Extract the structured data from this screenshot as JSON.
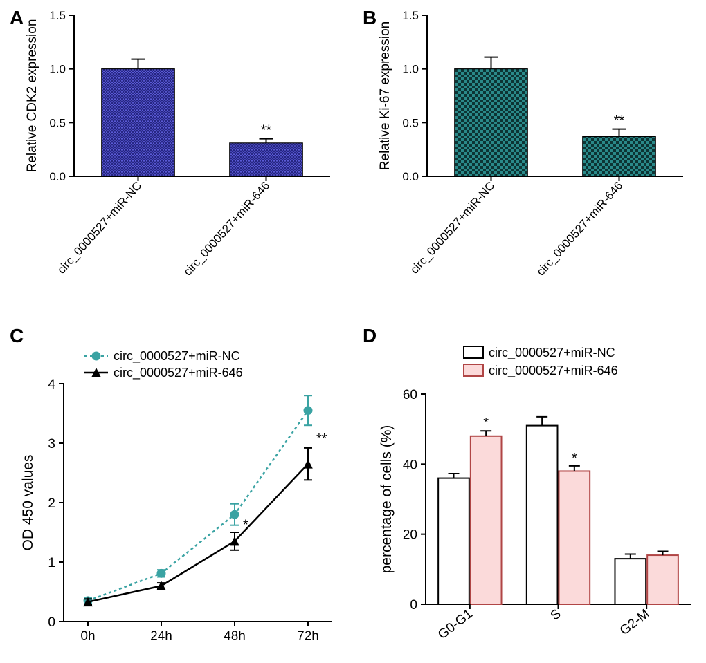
{
  "panelA": {
    "label": "A",
    "type": "bar",
    "ylabel": "Relative CDK2 expression",
    "ylim": [
      0,
      1.5
    ],
    "ytick_step": 0.5,
    "categories": [
      "circ_0000527+miR-NC",
      "circ_0000527+miR-646"
    ],
    "values": [
      1.0,
      0.31
    ],
    "errors": [
      0.09,
      0.04
    ],
    "bar_color": "#5b5bd6",
    "pattern": "zigzag",
    "pattern_stroke": "#1a1a70",
    "significance": [
      "",
      "**"
    ],
    "sig_fontsize": 20,
    "axis_color": "#000000",
    "label_fontsize": 19,
    "tick_fontsize": 17,
    "bar_width": 0.57,
    "background": "#ffffff"
  },
  "panelB": {
    "label": "B",
    "type": "bar",
    "ylabel": "Relative Ki-67 expression",
    "ylim": [
      0,
      1.5
    ],
    "ytick_step": 0.5,
    "categories": [
      "circ_0000527+miR-NC",
      "circ_0000527+miR-646"
    ],
    "values": [
      1.0,
      0.37
    ],
    "errors": [
      0.11,
      0.07
    ],
    "bar_color": "#2a8a8a",
    "pattern": "checker",
    "pattern_stroke": "#0d3535",
    "significance": [
      "",
      "**"
    ],
    "sig_fontsize": 20,
    "axis_color": "#000000",
    "label_fontsize": 19,
    "tick_fontsize": 17,
    "bar_width": 0.57,
    "background": "#ffffff"
  },
  "panelC": {
    "label": "C",
    "type": "line",
    "ylabel": "OD 450 values",
    "ylim": [
      0,
      4
    ],
    "ytick_step": 1,
    "xcategories": [
      "0h",
      "24h",
      "48h",
      "72h"
    ],
    "series": [
      {
        "name": "circ_0000527+miR-NC",
        "values": [
          0.35,
          0.81,
          1.8,
          3.55
        ],
        "errors": [
          0.05,
          0.06,
          0.18,
          0.25
        ],
        "color": "#3aa3a3",
        "marker": "circle",
        "dash": "4,4",
        "line_width": 2.5
      },
      {
        "name": "circ_0000527+miR-646",
        "values": [
          0.33,
          0.6,
          1.35,
          2.65
        ],
        "errors": [
          0.05,
          0.05,
          0.15,
          0.27
        ],
        "color": "#000000",
        "marker": "triangle",
        "dash": "none",
        "line_width": 2.5
      }
    ],
    "significance": [
      {
        "x_index": 2,
        "y": 1.55,
        "text": "*"
      },
      {
        "x_index": 3,
        "y": 3.0,
        "text": "**"
      }
    ],
    "axis_color": "#000000",
    "label_fontsize": 21,
    "tick_fontsize": 19,
    "legend_fontsize": 18,
    "background": "#ffffff"
  },
  "panelD": {
    "label": "D",
    "type": "grouped-bar",
    "ylabel": "percentage of cells (%)",
    "ylim": [
      0,
      60
    ],
    "ytick_step": 20,
    "categories": [
      "G0-G1",
      "S",
      "G2-M"
    ],
    "groups": [
      {
        "name": "circ_0000527+miR-NC",
        "values": [
          36,
          51,
          13
        ],
        "errors": [
          1.3,
          2.5,
          1.3
        ],
        "fill": "#ffffff",
        "stroke": "#000000"
      },
      {
        "name": "circ_0000527+miR-646",
        "values": [
          48,
          38,
          14
        ],
        "errors": [
          1.5,
          1.5,
          1.1
        ],
        "fill": "#fbdada",
        "stroke": "#b04545"
      }
    ],
    "significance": [
      {
        "cat_index": 0,
        "group_index": 1,
        "text": "*"
      },
      {
        "cat_index": 1,
        "group_index": 1,
        "text": "*"
      }
    ],
    "sig_fontsize": 20,
    "axis_color": "#000000",
    "label_fontsize": 21,
    "tick_fontsize": 19,
    "legend_fontsize": 18,
    "bar_width": 0.35,
    "background": "#ffffff"
  }
}
